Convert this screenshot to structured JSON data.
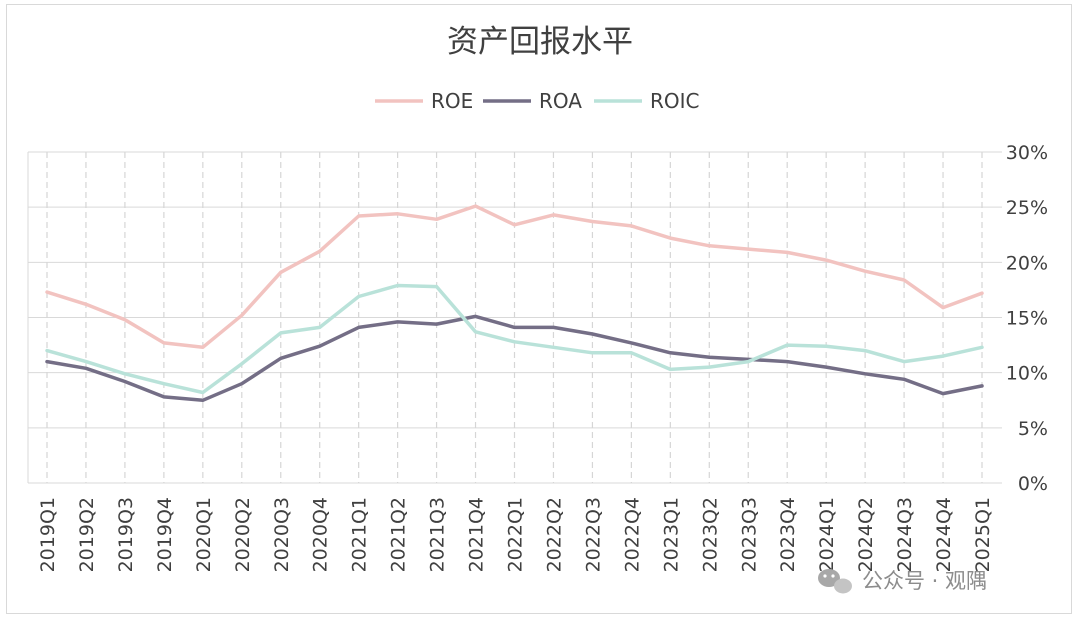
{
  "chart_data": {
    "type": "line",
    "title": "资产回报水平",
    "categories": [
      "2019Q1",
      "2019Q2",
      "2019Q3",
      "2019Q4",
      "2020Q1",
      "2020Q2",
      "2020Q3",
      "2020Q4",
      "2021Q1",
      "2021Q2",
      "2021Q3",
      "2021Q4",
      "2022Q1",
      "2022Q2",
      "2022Q3",
      "2022Q4",
      "2023Q1",
      "2023Q2",
      "2023Q3",
      "2023Q4",
      "2024Q1",
      "2024Q2",
      "2024Q3",
      "2024Q4",
      "2025Q1"
    ],
    "series": [
      {
        "name": "ROE",
        "color": "#f2c3c0",
        "values": [
          17.3,
          16.2,
          14.8,
          12.7,
          12.3,
          15.2,
          19.1,
          21.0,
          24.2,
          24.4,
          23.9,
          25.1,
          23.4,
          24.3,
          23.7,
          23.3,
          22.2,
          21.5,
          21.2,
          20.9,
          20.2,
          19.2,
          18.4,
          15.9,
          17.2
        ]
      },
      {
        "name": "ROA",
        "color": "#746e86",
        "values": [
          11.0,
          10.4,
          9.2,
          7.8,
          7.5,
          9.0,
          11.3,
          12.4,
          14.1,
          14.6,
          14.4,
          15.1,
          14.1,
          14.1,
          13.5,
          12.7,
          11.8,
          11.4,
          11.2,
          11.0,
          10.5,
          9.9,
          9.4,
          8.1,
          8.8
        ]
      },
      {
        "name": "ROIC",
        "color": "#b9e2d9",
        "values": [
          12.0,
          11.0,
          9.9,
          9.0,
          8.2,
          10.8,
          13.6,
          14.1,
          16.9,
          17.9,
          17.8,
          13.7,
          12.8,
          12.3,
          11.8,
          11.8,
          10.3,
          10.5,
          11.0,
          12.5,
          12.4,
          12.0,
          11.0,
          11.5,
          12.3
        ]
      }
    ],
    "ylim": [
      0,
      30
    ],
    "yticks": [
      0,
      5,
      10,
      15,
      20,
      25,
      30
    ],
    "ytick_labels": [
      "0%",
      "5%",
      "10%",
      "15%",
      "20%",
      "25%",
      "30%"
    ],
    "y_axis_side": "right",
    "legend_position": "top-center",
    "grid": true
  },
  "watermark": {
    "text": "公众号 · 观隅",
    "icon": "wechat-icon"
  }
}
